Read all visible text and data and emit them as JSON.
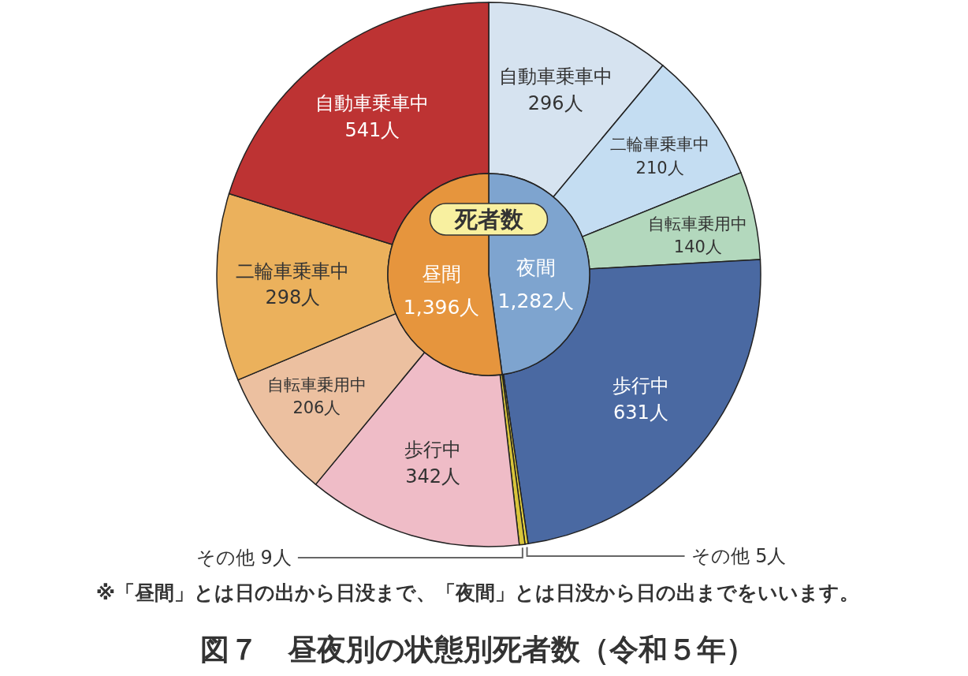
{
  "chart_data": [
    {
      "type": "pie",
      "title": "死者数",
      "categories": [
        "夜間",
        "昼間"
      ],
      "values": [
        1282,
        1396
      ],
      "value_labels": [
        "1,282人",
        "1,396人"
      ],
      "colors": [
        "#7ea4cf",
        "#e6953d"
      ]
    },
    {
      "type": "donut",
      "title": "図７　昼夜別の状態別死者数（令和５年）",
      "categories": [
        "自動車乗車中",
        "二輪車乗車中",
        "自転車乗用中",
        "歩行中",
        "その他",
        "その他",
        "歩行中",
        "自転車乗用中",
        "二輪車乗車中",
        "自動車乗車中"
      ],
      "values": [
        296,
        210,
        140,
        631,
        5,
        9,
        342,
        206,
        298,
        541
      ],
      "value_labels": [
        "296人",
        "210人",
        "140人",
        "631人",
        "5人",
        "9人",
        "342人",
        "206人",
        "298人",
        "541人"
      ],
      "colors": [
        "#d6e3f0",
        "#c4ddf2",
        "#b3d8bd",
        "#4a69a2",
        "#e9d43c",
        "#d9c53a",
        "#efbcc7",
        "#ecc0a0",
        "#ebb15c",
        "#bd3333"
      ],
      "annotations": [
        "※「昼間」とは日の出から日没まで、「夜間」とは日没から日の出までをいいます。"
      ]
    }
  ]
}
